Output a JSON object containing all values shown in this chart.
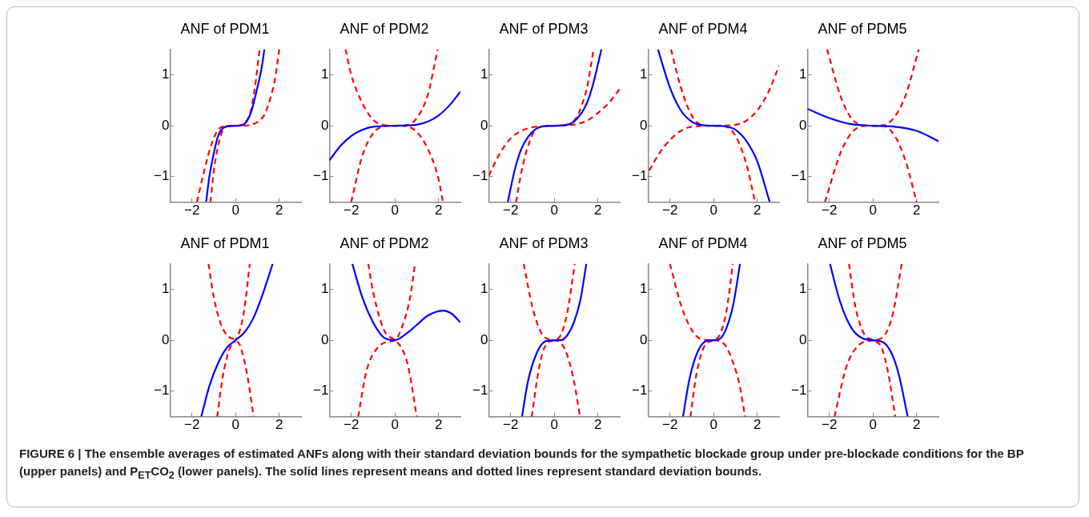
{
  "chart_data": [
    {
      "type": "line",
      "title": "ANF of PDM1",
      "xlim": [
        -3,
        3
      ],
      "ylim": [
        -1.5,
        1.5
      ],
      "xticks": [
        -2,
        0,
        2
      ],
      "yticks": [
        -1,
        0,
        1
      ],
      "series": [
        {
          "color": "#0000ff",
          "line_style": "solid",
          "x": [
            -1.35,
            -1.2,
            -1,
            -0.8,
            -0.5,
            0,
            0.3,
            0.5,
            0.7,
            1,
            1.2,
            1.32
          ],
          "values": [
            -1.5,
            -1.0,
            -0.55,
            -0.2,
            -0.03,
            0,
            0.01,
            0.08,
            0.25,
            0.75,
            1.15,
            1.5
          ]
        },
        {
          "color": "#ff0000",
          "line_style": "dashed",
          "x": [
            -1.77,
            -1.5,
            -1.2,
            -0.9,
            -0.6,
            0,
            0.4,
            0.7,
            0.9,
            1.1
          ],
          "values": [
            -1.5,
            -1.0,
            -0.5,
            -0.15,
            -0.02,
            0,
            0.05,
            0.3,
            0.8,
            1.5
          ]
        },
        {
          "color": "#ff0000",
          "line_style": "dashed",
          "x": [
            -1.15,
            -1,
            -0.8,
            -0.6,
            -0.3,
            0.3,
            0.6,
            1,
            1.3,
            1.6,
            1.8,
            2.0
          ],
          "values": [
            -1.5,
            -0.9,
            -0.4,
            -0.1,
            0,
            0,
            0.01,
            0.07,
            0.2,
            0.55,
            0.9,
            1.5
          ]
        }
      ]
    },
    {
      "type": "line",
      "title": "ANF of PDM2",
      "xlim": [
        -3,
        3
      ],
      "ylim": [
        -1.5,
        1.5
      ],
      "xticks": [
        -2,
        0,
        2
      ],
      "yticks": [
        -1,
        0,
        1
      ],
      "series": [
        {
          "color": "#0000ff",
          "line_style": "solid",
          "x": [
            -3,
            -2.5,
            -2,
            -1.5,
            -1,
            0,
            1,
            1.5,
            2,
            2.5,
            3
          ],
          "values": [
            -0.68,
            -0.4,
            -0.2,
            -0.08,
            -0.02,
            0,
            0.02,
            0.08,
            0.2,
            0.4,
            0.67
          ]
        },
        {
          "color": "#ff0000",
          "line_style": "dashed",
          "x": [
            -2.26,
            -2,
            -1.5,
            -1,
            -0.5,
            0,
            0.5,
            1,
            1.5,
            2,
            2.2
          ],
          "values": [
            1.5,
            1.0,
            0.45,
            0.12,
            0.01,
            0,
            -0.01,
            -0.12,
            -0.45,
            -1.05,
            -1.5
          ]
        },
        {
          "color": "#ff0000",
          "line_style": "dashed",
          "x": [
            -2,
            -1.5,
            -1,
            -0.5,
            0,
            0.5,
            1,
            1.5,
            1.96
          ],
          "values": [
            -1.5,
            -0.6,
            -0.15,
            -0.01,
            0,
            0.01,
            0.15,
            0.6,
            1.5
          ]
        }
      ]
    },
    {
      "type": "line",
      "title": "ANF of PDM3",
      "xlim": [
        -3,
        3
      ],
      "ylim": [
        -1.5,
        1.5
      ],
      "xticks": [
        -2,
        0,
        2
      ],
      "yticks": [
        -1,
        0,
        1
      ],
      "series": [
        {
          "color": "#0000ff",
          "line_style": "solid",
          "x": [
            -2.13,
            -1.8,
            -1.5,
            -1,
            -0.5,
            0,
            0.5,
            1,
            1.5,
            1.8,
            2.16
          ],
          "values": [
            -1.5,
            -0.85,
            -0.45,
            -0.12,
            -0.01,
            0,
            0.01,
            0.12,
            0.45,
            0.85,
            1.5
          ]
        },
        {
          "color": "#ff0000",
          "line_style": "dashed",
          "x": [
            -1.75,
            -1.5,
            -1.2,
            -0.8,
            0,
            0.6,
            1,
            1.3,
            1.5,
            1.8
          ],
          "values": [
            -1.5,
            -0.9,
            -0.4,
            -0.05,
            0,
            0.02,
            0.15,
            0.45,
            0.75,
            1.5
          ]
        },
        {
          "color": "#ff0000",
          "line_style": "dashed",
          "x": [
            -3,
            -2.5,
            -2,
            -1.5,
            -1,
            0,
            1,
            1.5,
            2,
            2.5,
            3
          ],
          "values": [
            -0.98,
            -0.55,
            -0.25,
            -0.1,
            -0.03,
            0,
            0.03,
            0.1,
            0.25,
            0.45,
            0.72
          ]
        }
      ]
    },
    {
      "type": "line",
      "title": "ANF of PDM4",
      "xlim": [
        -3,
        3
      ],
      "ylim": [
        -1.5,
        1.5
      ],
      "xticks": [
        -2,
        0,
        2
      ],
      "yticks": [
        -1,
        0,
        1
      ],
      "series": [
        {
          "color": "#0000ff",
          "line_style": "solid",
          "x": [
            -2.55,
            -2,
            -1.5,
            -1,
            -0.5,
            0,
            0.5,
            1,
            1.5,
            2,
            2.57
          ],
          "values": [
            1.5,
            0.75,
            0.3,
            0.08,
            0.01,
            0,
            -0.01,
            -0.08,
            -0.3,
            -0.7,
            -1.5
          ]
        },
        {
          "color": "#ff0000",
          "line_style": "dashed",
          "x": [
            -1.95,
            -1.5,
            -1,
            -0.5,
            0,
            0.5,
            1,
            1.5,
            1.9
          ],
          "values": [
            1.5,
            0.75,
            0.2,
            0.01,
            0,
            -0.01,
            -0.2,
            -0.75,
            -1.5
          ]
        },
        {
          "color": "#ff0000",
          "line_style": "dashed",
          "x": [
            -2.95,
            -2.5,
            -2,
            -1.5,
            -1,
            0,
            1,
            1.5,
            2,
            2.5,
            3
          ],
          "values": [
            -0.88,
            -0.55,
            -0.28,
            -0.1,
            -0.02,
            0,
            0.02,
            0.1,
            0.3,
            0.65,
            1.18
          ]
        }
      ]
    },
    {
      "type": "line",
      "title": "ANF of PDM5",
      "xlim": [
        -3,
        3
      ],
      "ylim": [
        -1.5,
        1.5
      ],
      "xticks": [
        -2,
        0,
        2
      ],
      "yticks": [
        -1,
        0,
        1
      ],
      "series": [
        {
          "color": "#0000ff",
          "line_style": "solid",
          "x": [
            -3,
            -2,
            -1,
            0,
            1,
            2,
            3
          ],
          "values": [
            0.33,
            0.15,
            0.03,
            0,
            -0.02,
            -0.1,
            -0.3
          ]
        },
        {
          "color": "#ff0000",
          "line_style": "dashed",
          "x": [
            -2.1,
            -1.5,
            -1,
            -0.5,
            0,
            0.5,
            1,
            1.5,
            2
          ],
          "values": [
            1.5,
            0.6,
            0.15,
            0.01,
            0,
            -0.01,
            -0.2,
            -0.7,
            -1.5
          ]
        },
        {
          "color": "#ff0000",
          "line_style": "dashed",
          "x": [
            -2.2,
            -1.5,
            -1,
            -0.5,
            0,
            0.5,
            1,
            1.5,
            2.1
          ],
          "values": [
            -1.5,
            -0.55,
            -0.15,
            -0.01,
            0,
            0.01,
            0.18,
            0.6,
            1.5
          ]
        }
      ]
    },
    {
      "type": "line",
      "title": "ANF of PDM1",
      "xlim": [
        -3,
        3
      ],
      "ylim": [
        -1.5,
        1.5
      ],
      "xticks": [
        -2,
        0,
        2
      ],
      "yticks": [
        -1,
        0,
        1
      ],
      "series": [
        {
          "color": "#0000ff",
          "line_style": "solid",
          "x": [
            -1.57,
            -1.2,
            -0.8,
            -0.4,
            0,
            0.4,
            0.8,
            1.2,
            1.7
          ],
          "values": [
            -1.5,
            -0.9,
            -0.45,
            -0.15,
            0,
            0.15,
            0.42,
            0.85,
            1.5
          ]
        },
        {
          "color": "#ff0000",
          "line_style": "dashed",
          "x": [
            -1.24,
            -1,
            -0.7,
            -0.4,
            0,
            0.2,
            0.5,
            0.83
          ],
          "values": [
            1.5,
            0.85,
            0.35,
            0.1,
            0,
            -0.1,
            -0.6,
            -1.5
          ]
        },
        {
          "color": "#ff0000",
          "line_style": "dashed",
          "x": [
            -0.84,
            -0.6,
            -0.3,
            0,
            0.2,
            0.4,
            0.65
          ],
          "values": [
            -1.5,
            -0.75,
            -0.2,
            0,
            0.2,
            0.6,
            1.5
          ]
        }
      ]
    },
    {
      "type": "line",
      "title": "ANF of PDM2",
      "xlim": [
        -3,
        3
      ],
      "ylim": [
        -1.5,
        1.5
      ],
      "xticks": [
        -2,
        0,
        2
      ],
      "yticks": [
        -1,
        0,
        1
      ],
      "series": [
        {
          "color": "#0000ff",
          "line_style": "solid",
          "x": [
            -1.95,
            -1.5,
            -1,
            -0.5,
            0,
            0.5,
            1,
            1.5,
            2.2,
            2.6,
            3
          ],
          "values": [
            1.5,
            0.85,
            0.35,
            0.05,
            0,
            0.12,
            0.3,
            0.48,
            0.58,
            0.52,
            0.35
          ]
        },
        {
          "color": "#ff0000",
          "line_style": "dashed",
          "x": [
            -1.22,
            -1,
            -0.5,
            0,
            0.3,
            0.6,
            1.0
          ],
          "values": [
            1.5,
            0.95,
            0.2,
            0,
            -0.15,
            -0.5,
            -1.5
          ]
        },
        {
          "color": "#ff0000",
          "line_style": "dashed",
          "x": [
            -1.68,
            -1.3,
            -0.8,
            -0.3,
            0,
            0.4,
            0.7,
            0.92
          ],
          "values": [
            -1.5,
            -0.6,
            -0.15,
            -0.03,
            0,
            0.35,
            0.85,
            1.5
          ]
        }
      ]
    },
    {
      "type": "line",
      "title": "ANF of PDM3",
      "xlim": [
        -3,
        3
      ],
      "ylim": [
        -1.5,
        1.5
      ],
      "xticks": [
        -2,
        0,
        2
      ],
      "yticks": [
        -1,
        0,
        1
      ],
      "series": [
        {
          "color": "#0000ff",
          "line_style": "solid",
          "x": [
            -1.48,
            -1.2,
            -0.8,
            -0.4,
            0,
            0.3,
            0.6,
            0.9,
            1.2,
            1.47
          ],
          "values": [
            -1.5,
            -0.8,
            -0.25,
            -0.02,
            0,
            0,
            0.1,
            0.35,
            0.8,
            1.5
          ]
        },
        {
          "color": "#ff0000",
          "line_style": "dashed",
          "x": [
            -1.4,
            -1,
            -0.6,
            -0.2,
            0,
            0.3,
            0.6,
            0.9,
            1.18
          ],
          "values": [
            1.5,
            0.65,
            0.15,
            0.01,
            0,
            -0.05,
            -0.3,
            -0.8,
            -1.5
          ]
        },
        {
          "color": "#ff0000",
          "line_style": "dashed",
          "x": [
            -1.03,
            -0.7,
            -0.4,
            0,
            0.3,
            0.6,
            0.94
          ],
          "values": [
            -1.5,
            -0.55,
            -0.1,
            0,
            0.1,
            0.55,
            1.5
          ]
        }
      ]
    },
    {
      "type": "line",
      "title": "ANF of PDM4",
      "xlim": [
        -3,
        3
      ],
      "ylim": [
        -1.5,
        1.5
      ],
      "xticks": [
        -2,
        0,
        2
      ],
      "yticks": [
        -1,
        0,
        1
      ],
      "series": [
        {
          "color": "#0000ff",
          "line_style": "solid",
          "x": [
            -1.4,
            -1.1,
            -0.7,
            -0.3,
            0,
            0.3,
            0.6,
            0.9,
            1.21
          ],
          "values": [
            -1.5,
            -0.75,
            -0.2,
            -0.01,
            0,
            0.03,
            0.25,
            0.7,
            1.5
          ]
        },
        {
          "color": "#ff0000",
          "line_style": "dashed",
          "x": [
            -2,
            -1.5,
            -1,
            -0.5,
            0,
            0.5,
            0.9,
            1.2,
            1.44
          ],
          "values": [
            1.5,
            0.7,
            0.2,
            0.01,
            0,
            -0.08,
            -0.45,
            -0.9,
            -1.5
          ]
        },
        {
          "color": "#ff0000",
          "line_style": "dashed",
          "x": [
            -1.06,
            -0.8,
            -0.4,
            0,
            0.3,
            0.6,
            0.88
          ],
          "values": [
            -1.5,
            -0.7,
            -0.1,
            0,
            0.12,
            0.6,
            1.5
          ]
        }
      ]
    },
    {
      "type": "line",
      "title": "ANF of PDM5",
      "xlim": [
        -3,
        3
      ],
      "ylim": [
        -1.5,
        1.5
      ],
      "xticks": [
        -2,
        0,
        2
      ],
      "yticks": [
        -1,
        0,
        1
      ],
      "series": [
        {
          "color": "#0000ff",
          "line_style": "solid",
          "x": [
            -1.97,
            -1.5,
            -1,
            -0.5,
            0,
            0.5,
            0.9,
            1.2,
            1.59
          ],
          "values": [
            1.5,
            0.75,
            0.25,
            0.04,
            0,
            -0.05,
            -0.3,
            -0.7,
            -1.5
          ]
        },
        {
          "color": "#ff0000",
          "line_style": "dashed",
          "x": [
            -1.1,
            -0.8,
            -0.4,
            0,
            0.4,
            0.7,
            1.02
          ],
          "values": [
            1.5,
            0.65,
            0.12,
            0,
            -0.15,
            -0.65,
            -1.5
          ]
        },
        {
          "color": "#ff0000",
          "line_style": "dashed",
          "x": [
            -1.76,
            -1.2,
            -0.6,
            0,
            0.5,
            0.9,
            1.32
          ],
          "values": [
            -1.5,
            -0.5,
            -0.08,
            0,
            0.08,
            0.5,
            1.5
          ]
        }
      ]
    },
    {
      "type": "other",
      "annotations": [
        "FIGURE 6 | The ensemble averages of estimated ANFs along with their standard deviation bounds for the sympathetic blockade group under pre-blockade conditions for the BP (upper panels) and P$_{ET}$CO$_{2}$ (lower panels). The solid lines represent means and dotted lines represent standard deviation bounds."
      ]
    }
  ]
}
